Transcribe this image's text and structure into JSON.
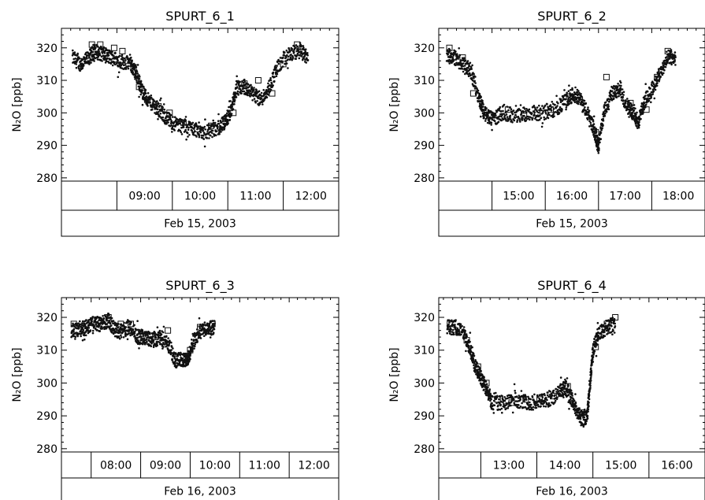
{
  "chart_data": [
    {
      "type": "scatter",
      "title": "SPURT_6_1",
      "ylabel": "N₂O [ppb]",
      "ylim": [
        279,
        326
      ],
      "yticks": [
        280,
        290,
        300,
        310,
        320
      ],
      "xlim": [
        8.0,
        13.0
      ],
      "time_labels": [
        "09:00",
        "10:00",
        "11:00",
        "12:00"
      ],
      "time_ticks": [
        9,
        10,
        11,
        12
      ],
      "date_label": "Feb 15, 2003",
      "trace": [
        [
          8.2,
          317
        ],
        [
          8.35,
          315
        ],
        [
          8.5,
          317
        ],
        [
          8.6,
          319
        ],
        [
          8.75,
          318
        ],
        [
          8.9,
          317
        ],
        [
          9.05,
          316
        ],
        [
          9.25,
          315
        ],
        [
          9.35,
          312
        ],
        [
          9.45,
          307
        ],
        [
          9.55,
          304
        ],
        [
          9.7,
          302
        ],
        [
          9.85,
          299
        ],
        [
          10.0,
          297
        ],
        [
          10.2,
          296
        ],
        [
          10.4,
          295
        ],
        [
          10.6,
          294
        ],
        [
          10.8,
          295
        ],
        [
          10.95,
          297
        ],
        [
          11.05,
          300
        ],
        [
          11.15,
          307
        ],
        [
          11.3,
          308
        ],
        [
          11.45,
          306
        ],
        [
          11.6,
          304
        ],
        [
          11.75,
          308
        ],
        [
          11.9,
          314
        ],
        [
          12.1,
          318
        ],
        [
          12.3,
          319
        ],
        [
          12.45,
          317
        ]
      ],
      "squares": [
        [
          8.55,
          321
        ],
        [
          8.7,
          321
        ],
        [
          8.95,
          320
        ],
        [
          9.1,
          319
        ],
        [
          9.2,
          316
        ],
        [
          9.3,
          314
        ],
        [
          9.4,
          308
        ],
        [
          9.55,
          304
        ],
        [
          9.75,
          302
        ],
        [
          9.95,
          300
        ],
        [
          10.2,
          297
        ],
        [
          10.45,
          295
        ],
        [
          10.7,
          296
        ],
        [
          10.9,
          296
        ],
        [
          11.1,
          300
        ],
        [
          11.3,
          309
        ],
        [
          11.55,
          310
        ],
        [
          11.8,
          306
        ],
        [
          12.0,
          315
        ],
        [
          12.25,
          321
        ]
      ]
    },
    {
      "type": "scatter",
      "title": "SPURT_6_2",
      "ylabel": "N₂O [ppb]",
      "ylim": [
        279,
        326
      ],
      "yticks": [
        280,
        290,
        300,
        310,
        320
      ],
      "xlim": [
        14.0,
        19.0
      ],
      "time_labels": [
        "15:00",
        "16:00",
        "17:00",
        "18:00"
      ],
      "time_ticks": [
        15,
        16,
        17,
        18
      ],
      "date_label": "Feb 15, 2003",
      "trace": [
        [
          14.15,
          318
        ],
        [
          14.3,
          317
        ],
        [
          14.45,
          315
        ],
        [
          14.6,
          313
        ],
        [
          14.75,
          305
        ],
        [
          14.85,
          300
        ],
        [
          15.0,
          298
        ],
        [
          15.2,
          300
        ],
        [
          15.45,
          299
        ],
        [
          15.7,
          300
        ],
        [
          15.95,
          300
        ],
        [
          16.2,
          301
        ],
        [
          16.4,
          304
        ],
        [
          16.55,
          306
        ],
        [
          16.7,
          303
        ],
        [
          16.85,
          298
        ],
        [
          16.95,
          293
        ],
        [
          17.0,
          289
        ],
        [
          17.1,
          300
        ],
        [
          17.25,
          306
        ],
        [
          17.4,
          307
        ],
        [
          17.55,
          302
        ],
        [
          17.65,
          300
        ],
        [
          17.75,
          297
        ],
        [
          17.85,
          303
        ],
        [
          18.0,
          307
        ],
        [
          18.15,
          312
        ],
        [
          18.3,
          317
        ],
        [
          18.45,
          317
        ]
      ],
      "squares": [
        [
          14.2,
          320
        ],
        [
          14.45,
          317
        ],
        [
          14.65,
          306
        ],
        [
          14.95,
          299
        ],
        [
          15.3,
          301
        ],
        [
          15.6,
          299
        ],
        [
          15.85,
          300
        ],
        [
          16.1,
          301
        ],
        [
          16.45,
          305
        ],
        [
          16.65,
          304
        ],
        [
          16.95,
          294
        ],
        [
          17.15,
          311
        ],
        [
          17.35,
          306
        ],
        [
          17.6,
          303
        ],
        [
          17.9,
          301
        ],
        [
          18.1,
          311
        ],
        [
          18.3,
          319
        ]
      ]
    },
    {
      "type": "scatter",
      "title": "SPURT_6_3",
      "ylabel": "N₂O [ppb]",
      "ylim": [
        279,
        326
      ],
      "yticks": [
        280,
        290,
        300,
        310,
        320
      ],
      "xlim": [
        7.4,
        13.0
      ],
      "time_labels": [
        "08:00",
        "09:00",
        "10:00",
        "11:00",
        "12:00"
      ],
      "time_ticks": [
        8,
        9,
        10,
        11,
        12
      ],
      "date_label": "Feb 16, 2003",
      "trace": [
        [
          7.6,
          316
        ],
        [
          7.75,
          316
        ],
        [
          7.9,
          317
        ],
        [
          8.05,
          318
        ],
        [
          8.2,
          318
        ],
        [
          8.35,
          319
        ],
        [
          8.5,
          316
        ],
        [
          8.65,
          316
        ],
        [
          8.8,
          317
        ],
        [
          8.95,
          314
        ],
        [
          9.1,
          314
        ],
        [
          9.25,
          313
        ],
        [
          9.4,
          314
        ],
        [
          9.55,
          312
        ],
        [
          9.7,
          307
        ],
        [
          9.85,
          307
        ],
        [
          9.95,
          307
        ],
        [
          10.05,
          312
        ],
        [
          10.2,
          316
        ],
        [
          10.35,
          317
        ],
        [
          10.5,
          317
        ]
      ],
      "squares": [
        [
          7.65,
          318
        ],
        [
          7.9,
          318
        ],
        [
          8.15,
          319
        ],
        [
          8.35,
          320
        ],
        [
          8.6,
          318
        ],
        [
          8.8,
          318
        ],
        [
          9.05,
          314
        ],
        [
          9.3,
          314
        ],
        [
          9.55,
          316
        ],
        [
          9.75,
          308
        ],
        [
          10.0,
          310
        ],
        [
          10.2,
          317
        ],
        [
          10.45,
          318
        ]
      ]
    },
    {
      "type": "scatter",
      "title": "SPURT_6_4",
      "ylabel": "N₂O [ppb]",
      "ylim": [
        279,
        326
      ],
      "yticks": [
        280,
        290,
        300,
        310,
        320
      ],
      "xlim": [
        12.25,
        17.0
      ],
      "time_labels": [
        "13:00",
        "14:00",
        "15:00",
        "16:00"
      ],
      "time_ticks": [
        13,
        14,
        15,
        16
      ],
      "date_label": "Feb 16, 2003",
      "trace": [
        [
          12.4,
          317
        ],
        [
          12.55,
          317
        ],
        [
          12.7,
          315
        ],
        [
          12.8,
          311
        ],
        [
          12.9,
          305
        ],
        [
          13.0,
          302
        ],
        [
          13.1,
          298
        ],
        [
          13.2,
          294
        ],
        [
          13.4,
          294
        ],
        [
          13.6,
          295
        ],
        [
          13.8,
          294
        ],
        [
          14.0,
          294
        ],
        [
          14.2,
          295
        ],
        [
          14.4,
          297
        ],
        [
          14.5,
          299
        ],
        [
          14.6,
          296
        ],
        [
          14.7,
          292
        ],
        [
          14.8,
          289
        ],
        [
          14.9,
          290
        ],
        [
          14.95,
          300
        ],
        [
          15.0,
          310
        ],
        [
          15.1,
          315
        ],
        [
          15.25,
          317
        ],
        [
          15.4,
          318
        ]
      ],
      "squares": [
        [
          12.45,
          318
        ],
        [
          12.75,
          313
        ],
        [
          12.95,
          305
        ],
        [
          13.1,
          300
        ],
        [
          13.3,
          295
        ],
        [
          13.55,
          294
        ],
        [
          13.8,
          295
        ],
        [
          14.05,
          295
        ],
        [
          14.3,
          296
        ],
        [
          14.55,
          299
        ],
        [
          14.8,
          291
        ],
        [
          15.05,
          311
        ],
        [
          15.25,
          318
        ],
        [
          15.4,
          320
        ]
      ]
    }
  ]
}
